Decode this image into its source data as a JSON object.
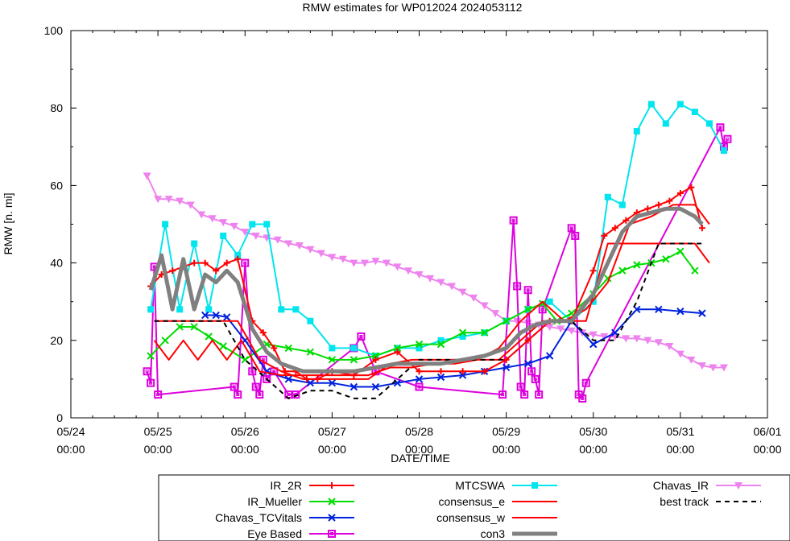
{
  "chart_data": {
    "type": "line",
    "title": "RMW estimates for WP012024 2024053112",
    "xlabel": "DATE/TIME",
    "ylabel": "RMW [n. mi]",
    "xlim": [
      "05/24 00:00",
      "06/01 00:00"
    ],
    "ylim": [
      0,
      100
    ],
    "x_ticks": [
      {
        "date": "05/24",
        "time": "00:00"
      },
      {
        "date": "05/25",
        "time": "00:00"
      },
      {
        "date": "05/26",
        "time": "00:00"
      },
      {
        "date": "05/27",
        "time": "00:00"
      },
      {
        "date": "05/28",
        "time": "00:00"
      },
      {
        "date": "05/29",
        "time": "00:00"
      },
      {
        "date": "05/30",
        "time": "00:00"
      },
      {
        "date": "05/31",
        "time": "00:00"
      },
      {
        "date": "06/01",
        "time": "00:00"
      }
    ],
    "y_ticks": [
      "0",
      "20",
      "40",
      "60",
      "80",
      "100"
    ],
    "grid": false,
    "legend_position": "bottom",
    "series": [
      {
        "name": "IR_2R",
        "color": "#ff0000",
        "marker": "plus",
        "width": 2,
        "x": [
          "05/24 22:00",
          "05/25 01:00",
          "05/25 04:00",
          "05/25 07:00",
          "05/25 10:00",
          "05/25 13:00",
          "05/25 16:00",
          "05/25 19:00",
          "05/25 22:00",
          "05/26 02:00",
          "05/26 05:00",
          "05/26 08:00",
          "05/26 11:00",
          "05/26 14:00",
          "05/26 17:00",
          "05/26 20:00",
          "05/27 00:00",
          "05/27 06:00",
          "05/27 12:00",
          "05/27 18:00",
          "05/28 00:00",
          "05/28 06:00",
          "05/28 12:00",
          "05/28 18:00",
          "05/29 00:00",
          "05/29 06:00",
          "05/29 12:00",
          "05/29 18:00",
          "05/30 00:00",
          "05/30 03:00",
          "05/30 06:00",
          "05/30 09:00",
          "05/30 12:00",
          "05/30 15:00",
          "05/30 18:00",
          "05/30 21:00",
          "05/31 00:00",
          "05/31 03:00",
          "05/31 06:00"
        ],
        "y": [
          34,
          37,
          38,
          39,
          40,
          40,
          38,
          40,
          41,
          25,
          22,
          18,
          12,
          12,
          10,
          10,
          12,
          11,
          15,
          17,
          12,
          12,
          12,
          12,
          15,
          20,
          25,
          25,
          38,
          47,
          49,
          51,
          53,
          54,
          55,
          56,
          58,
          59.5,
          49
        ]
      },
      {
        "name": "IR_Mueller",
        "color": "#00dd00",
        "marker": "x",
        "width": 2,
        "x": [
          "05/24 22:00",
          "05/25 02:00",
          "05/25 06:00",
          "05/25 10:00",
          "05/25 14:00",
          "05/25 18:00",
          "05/26 00:00",
          "05/26 06:00",
          "05/26 12:00",
          "05/26 18:00",
          "05/27 00:00",
          "05/27 06:00",
          "05/27 12:00",
          "05/27 18:00",
          "05/28 00:00",
          "05/28 06:00",
          "05/28 12:00",
          "05/28 18:00",
          "05/29 00:00",
          "05/29 06:00",
          "05/29 10:00",
          "05/29 14:00",
          "05/29 18:00",
          "05/30 00:00",
          "05/30 04:00",
          "05/30 08:00",
          "05/30 12:00",
          "05/30 16:00",
          "05/30 20:00",
          "05/31 00:00",
          "05/31 04:00"
        ],
        "y": [
          16,
          20,
          23.5,
          23.5,
          21,
          18.5,
          15,
          19,
          18,
          17,
          15,
          15,
          16,
          18,
          19,
          19,
          22,
          22,
          25,
          28,
          29.5,
          25,
          27,
          32,
          36,
          38,
          39.5,
          40,
          41,
          43,
          38
        ]
      },
      {
        "name": "Chavas_TCVitals",
        "color": "#0022dd",
        "marker": "x",
        "width": 2,
        "x": [
          "05/25 13:00",
          "05/25 16:00",
          "05/25 19:00",
          "05/26 00:00",
          "05/26 06:00",
          "05/26 12:00",
          "05/26 18:00",
          "05/27 00:00",
          "05/27 06:00",
          "05/27 12:00",
          "05/27 18:00",
          "05/28 00:00",
          "05/28 06:00",
          "05/28 12:00",
          "05/28 18:00",
          "05/29 00:00",
          "05/29 06:00",
          "05/29 12:00",
          "05/29 18:00",
          "05/30 00:00",
          "05/30 06:00",
          "05/30 12:00",
          "05/30 18:00",
          "05/31 00:00",
          "05/31 06:00"
        ],
        "y": [
          26.5,
          26.5,
          26,
          20,
          12,
          10,
          9,
          9,
          8,
          8,
          9,
          10,
          10.5,
          11,
          12,
          13,
          14,
          16,
          25,
          19,
          22,
          28,
          28,
          27.5,
          27
        ]
      },
      {
        "name": "Eye Based",
        "color": "#dd00dd",
        "marker": "square",
        "width": 2,
        "x": [
          "05/24 21:00",
          "05/24 22:00",
          "05/24 23:00",
          "05/25 00:00",
          "05/25 21:00",
          "05/25 22:00",
          "05/26 00:00",
          "05/26 02:00",
          "05/26 03:00",
          "05/26 04:00",
          "05/26 05:00",
          "05/26 06:00",
          "05/26 08:00",
          "05/26 12:00",
          "05/26 14:00",
          "05/27 06:00",
          "05/27 08:00",
          "05/27 12:00",
          "05/28 00:00",
          "05/28 23:00",
          "05/29 02:00",
          "05/29 03:00",
          "05/29 04:00",
          "05/29 05:00",
          "05/29 06:00",
          "05/29 07:00",
          "05/29 08:00",
          "05/29 09:00",
          "05/29 10:00",
          "05/29 18:00",
          "05/29 19:00",
          "05/29 20:00",
          "05/29 21:00",
          "05/29 22:00",
          "05/31 11:00",
          "05/31 12:00",
          "05/31 13:00"
        ],
        "y": [
          12,
          9,
          39,
          6,
          8,
          6,
          40,
          12,
          8,
          6,
          15,
          10,
          12,
          6,
          6,
          18,
          21,
          12,
          8,
          6,
          51,
          34,
          8,
          6,
          33,
          12,
          10,
          6,
          28,
          49,
          47,
          6,
          5,
          9,
          75,
          70,
          72
        ]
      },
      {
        "name": "MTCSWA",
        "color": "#00e5ee",
        "marker": "filled-square",
        "width": 2,
        "x": [
          "05/24 22:00",
          "05/25 02:00",
          "05/25 06:00",
          "05/25 10:00",
          "05/25 14:00",
          "05/25 18:00",
          "05/25 22:00",
          "05/26 02:00",
          "05/26 06:00",
          "05/26 10:00",
          "05/26 14:00",
          "05/26 18:00",
          "05/27 00:00",
          "05/27 06:00",
          "05/27 12:00",
          "05/27 18:00",
          "05/28 00:00",
          "05/28 06:00",
          "05/28 12:00",
          "05/28 18:00",
          "05/29 00:00",
          "05/29 06:00",
          "05/29 12:00",
          "05/29 18:00",
          "05/30 00:00",
          "05/30 04:00",
          "05/30 08:00",
          "05/30 12:00",
          "05/30 16:00",
          "05/30 20:00",
          "05/31 00:00",
          "05/31 04:00",
          "05/31 08:00",
          "05/31 12:00"
        ],
        "y": [
          28,
          50,
          28,
          45,
          28,
          47,
          42,
          50,
          50,
          28,
          28,
          25,
          18,
          18,
          16,
          18,
          18,
          20,
          21,
          22,
          25,
          28,
          30,
          25,
          30,
          57,
          55,
          74,
          81,
          76,
          81,
          79,
          76,
          69
        ]
      },
      {
        "name": "consensus_e",
        "color": "#ff0000",
        "marker": "none",
        "width": 2,
        "x": [
          "05/24 23:00",
          "05/25 04:00",
          "05/25 10:00",
          "05/25 16:00",
          "05/25 22:00",
          "05/26 04:00",
          "05/26 10:00",
          "05/26 16:00",
          "05/26 22:00",
          "05/27 04:00",
          "05/27 10:00",
          "05/27 16:00",
          "05/27 22:00",
          "05/28 04:00",
          "05/28 10:00",
          "05/28 16:00",
          "05/28 22:00",
          "05/29 04:00",
          "05/29 10:00",
          "05/29 16:00",
          "05/29 22:00",
          "05/30 04:00",
          "05/30 10:00",
          "05/30 16:00",
          "05/30 22:00",
          "05/31 04:00",
          "05/31 08:00"
        ],
        "y": [
          25,
          25,
          25,
          25,
          25,
          15,
          12,
          10,
          10,
          10,
          10,
          14,
          15,
          15,
          15,
          15,
          15,
          20,
          25,
          25,
          25,
          45,
          45,
          45,
          45,
          45,
          40
        ]
      },
      {
        "name": "consensus_w",
        "color": "#ff0000",
        "marker": "none",
        "width": 2,
        "x": [
          "05/24 23:00",
          "05/25 03:00",
          "05/25 07:00",
          "05/25 11:00",
          "05/25 15:00",
          "05/25 19:00",
          "05/25 23:00",
          "05/26 04:00",
          "05/26 10:00",
          "05/26 16:00",
          "05/26 22:00",
          "05/27 04:00",
          "05/27 10:00",
          "05/27 16:00",
          "05/27 22:00",
          "05/28 04:00",
          "05/28 10:00",
          "05/28 16:00",
          "05/28 22:00",
          "05/29 04:00",
          "05/29 10:00",
          "05/29 16:00",
          "05/29 22:00",
          "05/30 04:00",
          "05/30 10:00",
          "05/30 16:00",
          "05/30 22:00",
          "05/31 04:00",
          "05/31 08:00"
        ],
        "y": [
          20,
          15,
          20,
          15,
          20,
          15,
          20,
          12,
          11,
          11,
          11,
          11,
          11,
          13,
          13,
          14,
          14,
          15,
          18,
          25,
          30,
          25,
          28,
          35,
          50,
          52,
          55,
          55,
          50
        ]
      },
      {
        "name": "con3",
        "color": "#808080",
        "marker": "none",
        "width": 5,
        "x": [
          "05/24 22:00",
          "05/25 01:00",
          "05/25 04:00",
          "05/25 07:00",
          "05/25 10:00",
          "05/25 13:00",
          "05/25 16:00",
          "05/25 19:00",
          "05/25 22:00",
          "05/26 02:00",
          "05/26 06:00",
          "05/26 10:00",
          "05/26 16:00",
          "05/27 00:00",
          "05/27 06:00",
          "05/27 12:00",
          "05/27 18:00",
          "05/28 00:00",
          "05/28 06:00",
          "05/28 12:00",
          "05/28 18:00",
          "05/29 00:00",
          "05/29 04:00",
          "05/29 08:00",
          "05/29 12:00",
          "05/29 18:00",
          "05/30 00:00",
          "05/30 04:00",
          "05/30 08:00",
          "05/30 12:00",
          "05/30 16:00",
          "05/30 20:00",
          "05/31 00:00",
          "05/31 04:00",
          "05/31 06:00"
        ],
        "y": [
          33,
          42,
          28,
          41,
          28,
          37,
          35,
          38,
          35,
          23,
          17,
          14,
          12,
          12,
          12,
          13,
          14,
          14,
          14,
          15,
          16,
          18,
          22,
          24,
          25,
          25,
          32,
          40,
          48,
          52,
          53,
          54,
          54,
          52,
          50
        ]
      },
      {
        "name": "Chavas_IR",
        "color": "#ee82ee",
        "marker": "triangle-down",
        "width": 2,
        "x": [
          "05/24 21:00",
          "05/25 00:00",
          "05/25 03:00",
          "05/25 06:00",
          "05/25 09:00",
          "05/25 12:00",
          "05/25 15:00",
          "05/25 18:00",
          "05/25 21:00",
          "05/26 00:00",
          "05/26 03:00",
          "05/26 06:00",
          "05/26 09:00",
          "05/26 12:00",
          "05/26 15:00",
          "05/26 18:00",
          "05/26 21:00",
          "05/27 00:00",
          "05/27 03:00",
          "05/27 06:00",
          "05/27 09:00",
          "05/27 12:00",
          "05/27 15:00",
          "05/27 18:00",
          "05/27 21:00",
          "05/28 00:00",
          "05/28 03:00",
          "05/28 06:00",
          "05/28 09:00",
          "05/28 12:00",
          "05/28 15:00",
          "05/28 18:00",
          "05/28 21:00",
          "05/29 00:00",
          "05/29 03:00",
          "05/29 06:00",
          "05/29 09:00",
          "05/29 12:00",
          "05/29 15:00",
          "05/29 18:00",
          "05/29 21:00",
          "05/30 00:00",
          "05/30 03:00",
          "05/30 06:00",
          "05/30 09:00",
          "05/30 12:00",
          "05/30 15:00",
          "05/30 18:00",
          "05/30 21:00",
          "05/31 00:00",
          "05/31 03:00",
          "05/31 06:00",
          "05/31 09:00",
          "05/31 12:00"
        ],
        "y": [
          62.5,
          56.5,
          56.5,
          56,
          55,
          52.5,
          51.5,
          50.5,
          49.5,
          48,
          47,
          46.5,
          46,
          45,
          44.5,
          43.5,
          42.5,
          41.5,
          41,
          40,
          40,
          40.5,
          40,
          39,
          38,
          37,
          36,
          35,
          34,
          32.5,
          31,
          29,
          27,
          25,
          25,
          24.5,
          24,
          23.5,
          23,
          22.5,
          22,
          21.5,
          21,
          21,
          20.5,
          20.5,
          20,
          19.5,
          18.5,
          16.5,
          15,
          13.5,
          13,
          13
        ]
      },
      {
        "name": "best track",
        "color": "#000000",
        "marker": "none",
        "width": 2,
        "dash": true,
        "x": [
          "05/24 23:00",
          "05/25 12:00",
          "05/25 18:00",
          "05/26 00:00",
          "05/26 06:00",
          "05/26 12:00",
          "05/26 18:00",
          "05/27 00:00",
          "05/27 06:00",
          "05/27 12:00",
          "05/27 18:00",
          "05/28 00:00",
          "05/28 06:00",
          "05/28 12:00",
          "05/28 18:00",
          "05/29 00:00",
          "05/29 06:00",
          "05/29 12:00",
          "05/29 18:00",
          "05/30 00:00",
          "05/30 06:00",
          "05/30 12:00",
          "05/30 18:00",
          "05/31 00:00",
          "05/31 06:00"
        ],
        "y": [
          25,
          25,
          25,
          15,
          10,
          5,
          7,
          7,
          5,
          5,
          10,
          15,
          15,
          15,
          15,
          15,
          20,
          25,
          25,
          20,
          20,
          30,
          45,
          45,
          45
        ]
      }
    ]
  }
}
